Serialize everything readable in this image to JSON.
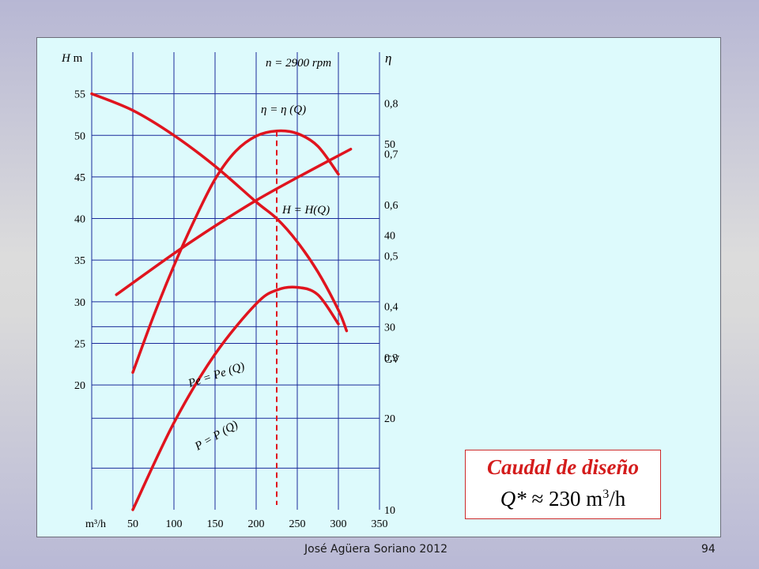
{
  "chart_data": {
    "type": "line",
    "x": {
      "label": "m³/h",
      "ticks": [
        50,
        100,
        150,
        200,
        250,
        300,
        350
      ],
      "range": [
        0,
        350
      ]
    },
    "y_left": {
      "label_var": "H",
      "label_unit": "m",
      "ticks": [
        20,
        25,
        30,
        35,
        40,
        45,
        50,
        55
      ],
      "range": [
        5,
        60
      ]
    },
    "y_right_eta": {
      "label": "η",
      "ticks": [
        "0,3",
        "0,4",
        "0,5",
        "0,6",
        "0,7",
        "0,8"
      ],
      "tick_values": [
        0.3,
        0.4,
        0.5,
        0.6,
        0.7,
        0.8
      ],
      "range": [
        0.0,
        0.9
      ]
    },
    "y_right_power": {
      "label": "CV",
      "ticks": [
        10,
        20,
        30,
        40,
        50
      ],
      "range": [
        10,
        60
      ]
    },
    "speed_label": "n = 2900 rpm",
    "series": [
      {
        "name": "H = H(Q)",
        "axis": "left",
        "color": "#e0141e",
        "x": [
          0,
          50,
          100,
          150,
          200,
          225,
          250,
          275,
          300,
          310
        ],
        "y": [
          55,
          53,
          50,
          46.3,
          42,
          40,
          37.2,
          33.6,
          29,
          26.5
        ]
      },
      {
        "name": "η = η (Q)",
        "axis": "eta",
        "color": "#e0141e",
        "x": [
          50,
          75,
          100,
          125,
          150,
          175,
          200,
          225,
          250,
          275,
          300
        ],
        "y": [
          0.27,
          0.38,
          0.48,
          0.57,
          0.65,
          0.705,
          0.735,
          0.745,
          0.74,
          0.715,
          0.66
        ]
      },
      {
        "name": "Pe = Pe (Q)",
        "axis": "power",
        "color": "#e0141e",
        "x": [
          30,
          100,
          150,
          200,
          250,
          315
        ],
        "y": [
          33.5,
          38,
          41,
          43.8,
          46.3,
          49.4
        ]
      },
      {
        "name": "P = P (Q)",
        "axis": "power",
        "color": "#e0141e",
        "x": [
          50,
          100,
          150,
          200,
          225,
          250,
          275,
          300
        ],
        "y": [
          10,
          19.5,
          27,
          32.5,
          34,
          34.3,
          33.5,
          30.3
        ]
      }
    ],
    "design_line_x": 225
  },
  "design": {
    "title": "Caudal de diseño",
    "q_symbol": "Q*",
    "approx": "≈",
    "value": "230 m",
    "exp": "3",
    "unit_tail": "/h"
  },
  "footer": {
    "author": "José Agüera Soriano 2012",
    "page": "94"
  }
}
